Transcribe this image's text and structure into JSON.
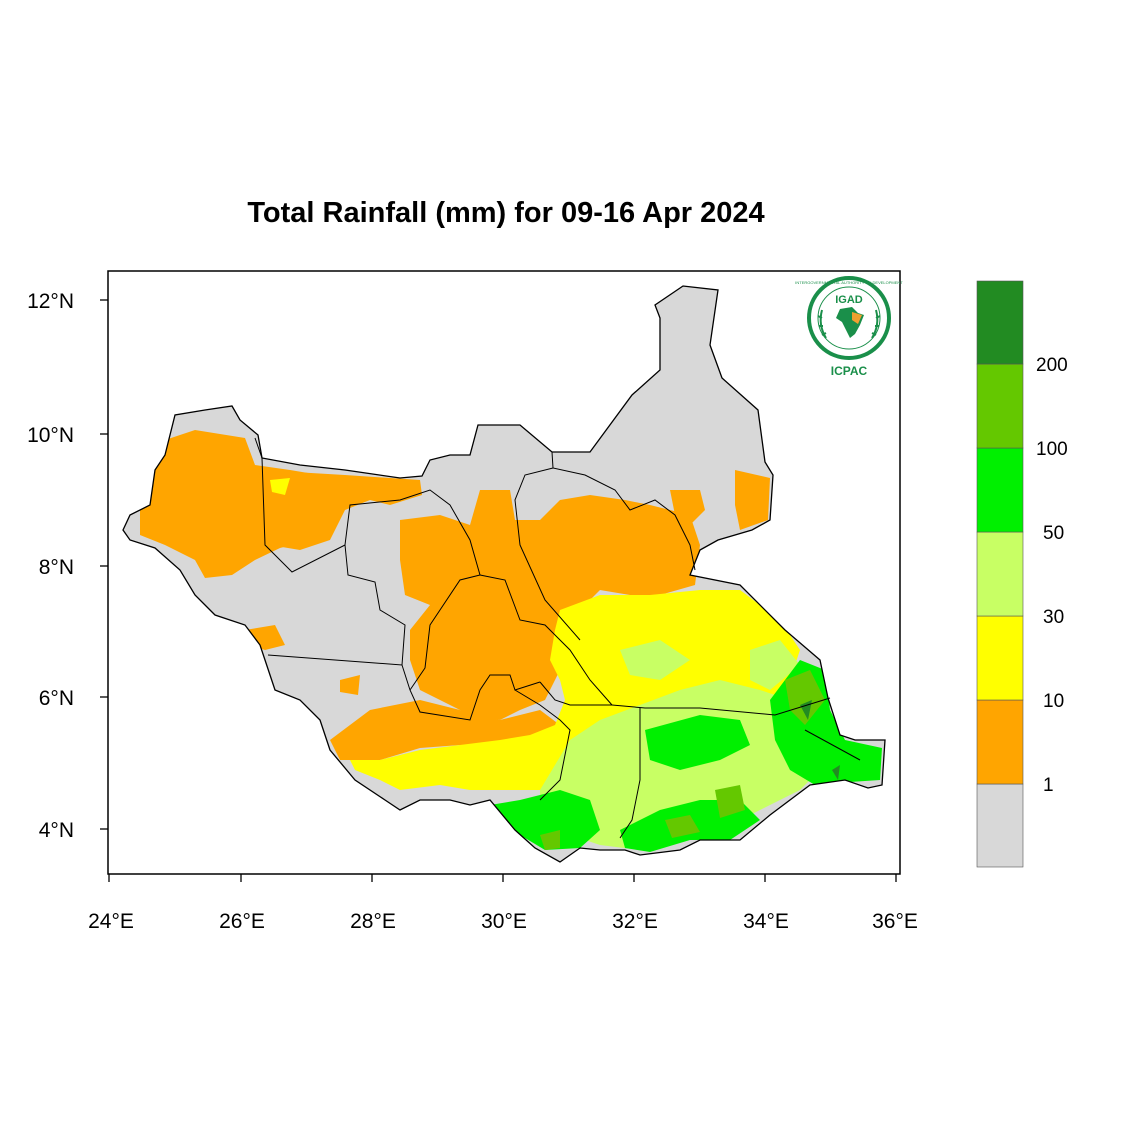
{
  "title": "Total Rainfall (mm) for 09-16 Apr 2024",
  "map": {
    "lon_range": [
      24,
      36
    ],
    "lat_range": [
      3.4,
      12.4
    ],
    "x_ticks": [
      "24°E",
      "26°E",
      "28°E",
      "30°E",
      "32°E",
      "34°E",
      "36°E"
    ],
    "y_ticks": [
      "4°N",
      "6°N",
      "8°N",
      "10°N",
      "12°N"
    ]
  },
  "legend": {
    "thresholds": [
      "1",
      "10",
      "30",
      "50",
      "100",
      "200"
    ],
    "colors": [
      "#d8d8d8",
      "#ffa500",
      "#ffff00",
      "#c8ff64",
      "#00f000",
      "#64c800",
      "#228b22"
    ]
  },
  "logo": {
    "name": "IGAD",
    "subname": "ICPAC",
    "ring_text": "INTERGOVERNMENTAL AUTHORITY ON DEVELOPMENT"
  }
}
